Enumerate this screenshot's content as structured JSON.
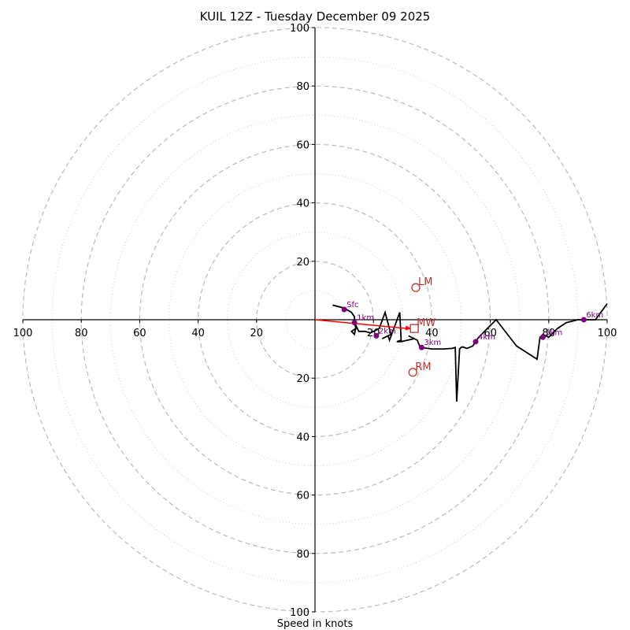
{
  "chart_data": {
    "type": "line",
    "subtype": "hodograph",
    "title": "KUIL 12Z - Tuesday December 09 2025",
    "xlabel": "Speed in knots",
    "ylabel": "",
    "range": [
      -100,
      100
    ],
    "rings_major": [
      20,
      40,
      60,
      80,
      100
    ],
    "rings_minor": [
      10,
      30,
      50,
      70,
      90
    ],
    "x_tick_labels": [
      "100",
      "80",
      "60",
      "40",
      "20",
      "20",
      "40",
      "60",
      "80",
      "100"
    ],
    "x_tick_values": [
      -100,
      -80,
      -60,
      -40,
      -20,
      20,
      40,
      60,
      80,
      100
    ],
    "y_tick_labels": [
      "100",
      "80",
      "60",
      "40",
      "20",
      "20",
      "40",
      "60",
      "80",
      "100"
    ],
    "y_tick_values": [
      100,
      80,
      60,
      40,
      20,
      -20,
      -40,
      -60,
      -80,
      -100
    ],
    "grid": true,
    "trace": {
      "name": "hodograph",
      "color": "#000000",
      "u": [
        6,
        10,
        12.5,
        13.5,
        13.5,
        14,
        12.5,
        13.5,
        14,
        13.5,
        15,
        17,
        19,
        22,
        24,
        26,
        23,
        25,
        25.5,
        27,
        29,
        29.5,
        28,
        29.5,
        34,
        32,
        35,
        36,
        40,
        44,
        47,
        48,
        48.5,
        49.5,
        50,
        50.5,
        52,
        54,
        56,
        59,
        62,
        69,
        76,
        77,
        78,
        80,
        83,
        86,
        90,
        92,
        96,
        100
      ],
      "v": [
        5,
        4,
        2.5,
        1,
        -1,
        -3,
        -4,
        -5,
        -2.5,
        -1,
        -4,
        -4,
        -4.5,
        -3,
        2.5,
        -5,
        -6.5,
        -5.5,
        -7,
        -3,
        2.5,
        -7,
        -7.5,
        -7.5,
        -6.5,
        -5.5,
        -7,
        -9.5,
        -10,
        -10,
        -9.8,
        -9.5,
        -28,
        -10,
        -9.5,
        -9.3,
        -9.8,
        -9,
        -6,
        -3,
        0,
        -9,
        -13.5,
        -6,
        -5,
        -6,
        -3,
        -1,
        0,
        0,
        0,
        5.5
      ]
    },
    "height_markers": [
      {
        "label": "Sfc",
        "u": 10,
        "v": 3.5,
        "color": "#800080"
      },
      {
        "label": "1km",
        "u": 13.5,
        "v": -1,
        "color": "#800080"
      },
      {
        "label": "2km",
        "u": 21,
        "v": -5.5,
        "color": "#800080"
      },
      {
        "label": "3km",
        "u": 36.5,
        "v": -9.5,
        "color": "#800080"
      },
      {
        "label": "4km",
        "u": 55,
        "v": -7.5,
        "color": "#800080"
      },
      {
        "label": "5km",
        "u": 78,
        "v": -6,
        "color": "#800080"
      },
      {
        "label": "6km",
        "u": 92,
        "v": 0,
        "color": "#800080"
      }
    ],
    "storm_motion": [
      {
        "label": "LM",
        "u": 34.5,
        "v": 11,
        "marker": "circle",
        "color": "#c03030"
      },
      {
        "label": "MW",
        "u": 34,
        "v": -3,
        "marker": "square",
        "color": "#c03030"
      },
      {
        "label": "RM",
        "u": 33.5,
        "v": -18,
        "marker": "circle",
        "color": "#c03030"
      }
    ],
    "shear_vector": {
      "from_u": 0,
      "from_v": 0,
      "to_u": 33,
      "to_v": -3,
      "color": "#ff0000"
    }
  }
}
